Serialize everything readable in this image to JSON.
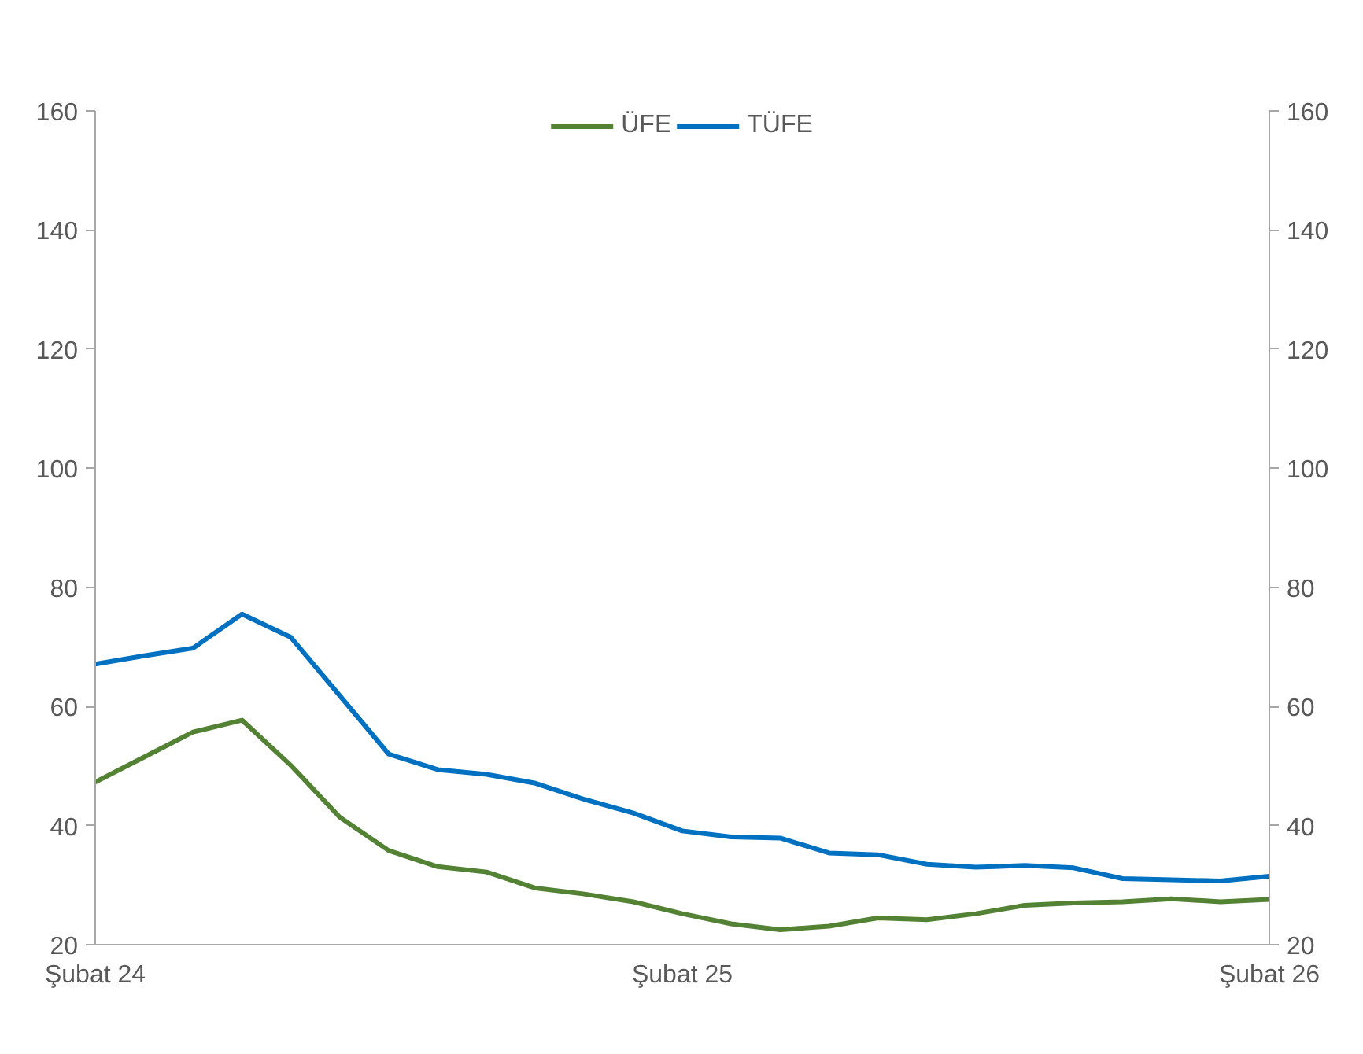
{
  "chart_data": {
    "type": "line",
    "x": [
      "2024-02",
      "2024-03",
      "2024-04",
      "2024-05",
      "2024-06",
      "2024-07",
      "2024-08",
      "2024-09",
      "2024-10",
      "2024-11",
      "2024-12",
      "2025-01",
      "2025-02",
      "2025-03",
      "2025-04",
      "2025-05",
      "2025-06",
      "2025-07",
      "2025-08",
      "2025-09",
      "2025-10",
      "2025-11",
      "2025-12",
      "2026-01",
      "2026-02"
    ],
    "series": [
      {
        "name": "ÜFE",
        "color": "#548235",
        "values": [
          47.3,
          51.5,
          55.7,
          57.7,
          50.1,
          41.4,
          35.8,
          33.1,
          32.2,
          29.5,
          28.5,
          27.2,
          25.2,
          23.5,
          22.5,
          23.1,
          24.5,
          24.2,
          25.2,
          26.6,
          27.0,
          27.2,
          27.7,
          27.2,
          27.6
        ]
      },
      {
        "name": "TÜFE",
        "color": "#0070c0",
        "values": [
          67.1,
          68.5,
          69.8,
          75.5,
          71.6,
          61.8,
          52.0,
          49.4,
          48.6,
          47.1,
          44.4,
          42.1,
          39.1,
          38.1,
          37.9,
          35.4,
          35.1,
          33.5,
          33.0,
          33.3,
          32.9,
          31.1,
          30.9,
          30.7,
          31.5
        ]
      }
    ],
    "xlim": [
      "2024-02",
      "2026-02"
    ],
    "xticks": [
      {
        "value": "2024-02",
        "label": "Şubat 24"
      },
      {
        "value": "2025-02",
        "label": "Şubat 25"
      },
      {
        "value": "2026-02",
        "label": "Şubat 26"
      }
    ],
    "ylim": [
      20,
      160
    ],
    "yticks": [
      20,
      40,
      60,
      80,
      100,
      120,
      140,
      160
    ],
    "y2lim": [
      20,
      160
    ],
    "y2ticks": [
      20,
      40,
      60,
      80,
      100,
      120,
      140,
      160
    ],
    "grid": false,
    "legend": "top",
    "line_style": "solid",
    "marker": "none"
  }
}
